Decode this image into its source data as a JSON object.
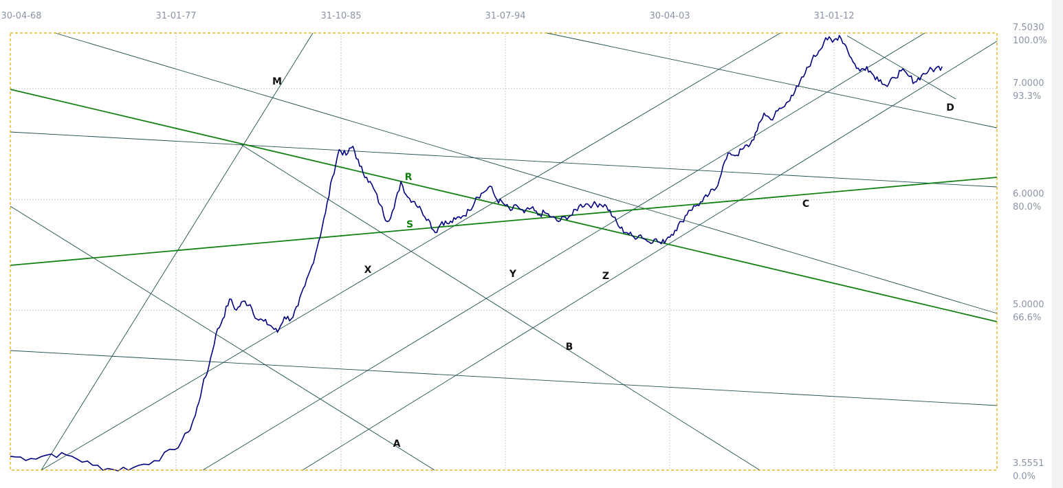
{
  "chart_data": {
    "type": "line",
    "colors": {
      "price": "#00007f",
      "guide": "#1f4f4f",
      "green": "#138013",
      "frame": "#e0a800",
      "grid": "#c8c8c8"
    },
    "x_ticks": [
      "30-04-68",
      "31-01-77",
      "31-10-85",
      "31-07-94",
      "30-04-03",
      "31-01-12"
    ],
    "y_levels": [
      {
        "value": "7.5030",
        "pct": "100.0%"
      },
      {
        "value": "7.0000",
        "pct": "93.3%"
      },
      {
        "value": "6.0000",
        "pct": "80.0%"
      },
      {
        "value": "5.0000",
        "pct": "66.6%"
      },
      {
        "value": "3.5551",
        "pct": "0.0%"
      }
    ],
    "labels": [
      {
        "text": "M",
        "color": "black"
      },
      {
        "text": "R",
        "color": "green"
      },
      {
        "text": "S",
        "color": "green"
      },
      {
        "text": "X",
        "color": "black"
      },
      {
        "text": "Y",
        "color": "black"
      },
      {
        "text": "Z",
        "color": "black"
      },
      {
        "text": "A",
        "color": "black"
      },
      {
        "text": "B",
        "color": "black"
      },
      {
        "text": "C",
        "color": "black"
      },
      {
        "text": "D",
        "color": "black"
      }
    ],
    "series": [
      {
        "values": [
          [
            0,
            3.68
          ],
          [
            3,
            3.66
          ],
          [
            6,
            3.7
          ],
          [
            9,
            3.68
          ],
          [
            12,
            3.6
          ],
          [
            15,
            3.56
          ],
          [
            18,
            3.58
          ],
          [
            21,
            3.64
          ],
          [
            24,
            3.74
          ],
          [
            26,
            3.9
          ],
          [
            27,
            4.05
          ],
          [
            28,
            4.3
          ],
          [
            29,
            4.5
          ],
          [
            30,
            4.78
          ],
          [
            31,
            4.92
          ],
          [
            32,
            5.1
          ],
          [
            33,
            5.0
          ],
          [
            34,
            5.08
          ],
          [
            35,
            5.05
          ],
          [
            36,
            4.92
          ],
          [
            37,
            4.9
          ],
          [
            38,
            4.86
          ],
          [
            39,
            4.8
          ],
          [
            40,
            4.94
          ],
          [
            41,
            4.92
          ],
          [
            42,
            5.04
          ],
          [
            43,
            5.22
          ],
          [
            44,
            5.4
          ],
          [
            45,
            5.62
          ],
          [
            46,
            5.88
          ],
          [
            47,
            6.2
          ],
          [
            48,
            6.45
          ],
          [
            49,
            6.4
          ],
          [
            50,
            6.48
          ],
          [
            51,
            6.3
          ],
          [
            52,
            6.2
          ],
          [
            53,
            6.1
          ],
          [
            54,
            5.95
          ],
          [
            55,
            5.8
          ],
          [
            56,
            5.92
          ],
          [
            57,
            6.16
          ],
          [
            58,
            6.02
          ],
          [
            59,
            5.98
          ],
          [
            60,
            5.9
          ],
          [
            61,
            5.82
          ],
          [
            62,
            5.7
          ],
          [
            63,
            5.8
          ],
          [
            64,
            5.78
          ],
          [
            65,
            5.82
          ],
          [
            66,
            5.85
          ],
          [
            67,
            5.9
          ],
          [
            68,
            6.02
          ],
          [
            69,
            6.06
          ],
          [
            70,
            6.12
          ],
          [
            71,
            6.0
          ],
          [
            72,
            5.96
          ],
          [
            73,
            5.9
          ],
          [
            74,
            5.94
          ],
          [
            75,
            5.88
          ],
          [
            76,
            5.92
          ],
          [
            77,
            5.86
          ],
          [
            78,
            5.88
          ],
          [
            79,
            5.84
          ],
          [
            80,
            5.8
          ],
          [
            81,
            5.84
          ],
          [
            82,
            5.86
          ],
          [
            83,
            5.94
          ],
          [
            84,
            5.96
          ],
          [
            85,
            5.95
          ],
          [
            86,
            5.96
          ],
          [
            87,
            5.94
          ],
          [
            88,
            5.84
          ],
          [
            89,
            5.74
          ],
          [
            90,
            5.7
          ],
          [
            91,
            5.66
          ],
          [
            92,
            5.68
          ],
          [
            93,
            5.62
          ],
          [
            94,
            5.64
          ],
          [
            95,
            5.6
          ],
          [
            96,
            5.66
          ],
          [
            97,
            5.72
          ],
          [
            98,
            5.8
          ],
          [
            99,
            5.9
          ],
          [
            100,
            5.94
          ],
          [
            101,
            5.98
          ],
          [
            102,
            6.05
          ],
          [
            103,
            6.1
          ],
          [
            104,
            6.3
          ],
          [
            105,
            6.42
          ],
          [
            106,
            6.4
          ],
          [
            107,
            6.46
          ],
          [
            108,
            6.5
          ],
          [
            109,
            6.62
          ],
          [
            110,
            6.78
          ],
          [
            111,
            6.72
          ],
          [
            112,
            6.8
          ],
          [
            113,
            6.84
          ],
          [
            114,
            6.94
          ],
          [
            115,
            7.02
          ],
          [
            116,
            7.14
          ],
          [
            117,
            7.26
          ],
          [
            118,
            7.34
          ],
          [
            119,
            7.46
          ],
          [
            120,
            7.42
          ],
          [
            121,
            7.48
          ],
          [
            122,
            7.38
          ],
          [
            123,
            7.24
          ],
          [
            124,
            7.16
          ],
          [
            125,
            7.2
          ],
          [
            126,
            7.12
          ],
          [
            127,
            7.08
          ],
          [
            128,
            7.02
          ],
          [
            129,
            7.1
          ],
          [
            130,
            7.16
          ],
          [
            131,
            7.12
          ],
          [
            132,
            7.06
          ],
          [
            133,
            7.12
          ],
          [
            134,
            7.16
          ],
          [
            135,
            7.18
          ],
          [
            136,
            7.2
          ]
        ]
      }
    ],
    "x_range": [
      0,
      144
    ],
    "y_range": [
      3.5551,
      7.503
    ]
  }
}
